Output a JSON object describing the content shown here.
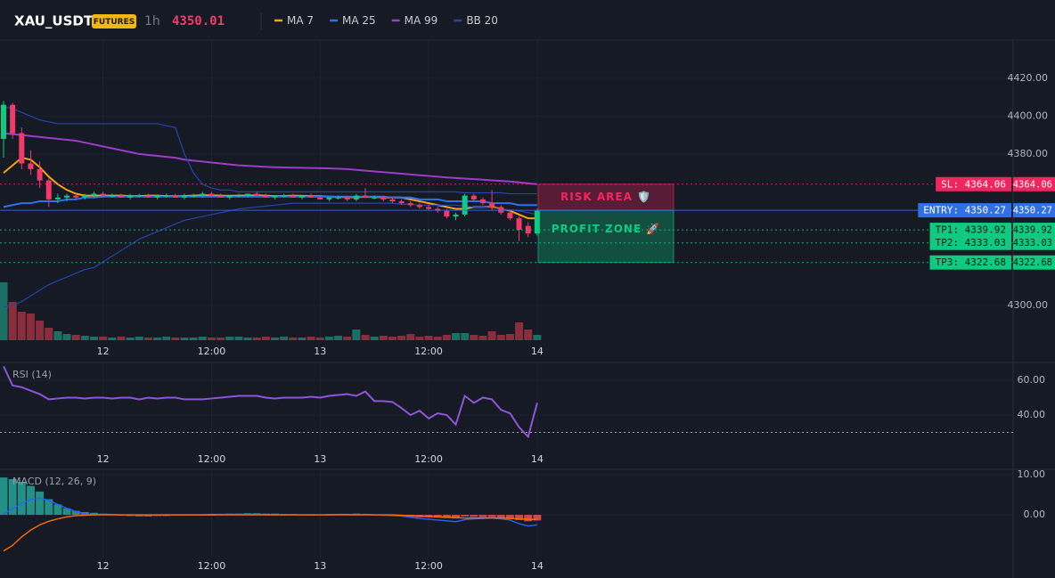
{
  "chart_data": {
    "type": "candlestick",
    "title": "XAU_USDT",
    "badge": "FUTURES",
    "interval": "1h",
    "price": 4350.01,
    "categories": [
      null,
      null,
      null,
      null,
      null,
      null,
      null,
      null,
      null,
      null,
      null,
      "12",
      null,
      null,
      null,
      null,
      null,
      null,
      null,
      null,
      null,
      null,
      null,
      "12:00",
      null,
      null,
      null,
      null,
      null,
      null,
      null,
      null,
      null,
      null,
      null,
      "13",
      null,
      null,
      null,
      null,
      null,
      null,
      null,
      null,
      null,
      null,
      null,
      "12:00",
      null,
      null,
      null,
      null,
      null,
      null,
      null,
      null,
      null,
      null,
      null,
      "14"
    ],
    "open": [
      4388,
      4406,
      4391,
      4375,
      4372,
      4366,
      4356,
      4357,
      4358,
      4357,
      4358,
      4359,
      4358,
      4358,
      4357,
      4358,
      4358,
      4357,
      4358,
      4358,
      4357,
      4358,
      4358,
      4359,
      4358,
      4357,
      4358,
      4358,
      4359,
      4358,
      4357,
      4358,
      4358,
      4357,
      4358,
      4357,
      4356,
      4357,
      4357,
      4356,
      4358,
      4357,
      4357,
      4356,
      4355,
      4354,
      4353,
      4352,
      4351,
      4350,
      4347,
      4348,
      4358,
      4356,
      4354,
      4352,
      4349,
      4346,
      4342,
      4338
    ],
    "high": [
      4408,
      4407,
      4394,
      4382,
      4376,
      4367,
      4359,
      4359,
      4359,
      4359,
      4360,
      4360,
      4359,
      4359,
      4359,
      4359,
      4359,
      4358,
      4359,
      4359,
      4359,
      4359,
      4360,
      4360,
      4359,
      4358,
      4359,
      4359,
      4360,
      4359,
      4358,
      4359,
      4359,
      4358,
      4359,
      4358,
      4357,
      4358,
      4358,
      4359,
      4362,
      4358,
      4358,
      4357,
      4356,
      4355,
      4354,
      4353,
      4352,
      4351,
      4349,
      4359,
      4359,
      4357,
      4361,
      4353,
      4350,
      4347,
      4344,
      4351
    ],
    "low": [
      4378,
      4388,
      4372,
      4369,
      4362,
      4352,
      4354,
      4355,
      4356,
      4356,
      4357,
      4357,
      4357,
      4357,
      4356,
      4357,
      4357,
      4356,
      4357,
      4357,
      4356,
      4357,
      4357,
      4357,
      4357,
      4356,
      4357,
      4357,
      4358,
      4357,
      4356,
      4357,
      4357,
      4356,
      4357,
      4356,
      4355,
      4356,
      4355,
      4355,
      4357,
      4356,
      4355,
      4354,
      4353,
      4352,
      4351,
      4350,
      4349,
      4346,
      4345,
      4347,
      4355,
      4353,
      4350,
      4348,
      4345,
      4334,
      4336,
      4337
    ],
    "close": [
      4406,
      4391,
      4375,
      4372,
      4366,
      4356,
      4357,
      4358,
      4357,
      4358,
      4359,
      4358,
      4358,
      4357,
      4358,
      4358,
      4357,
      4358,
      4358,
      4357,
      4358,
      4358,
      4359,
      4358,
      4357,
      4358,
      4358,
      4359,
      4358,
      4357,
      4358,
      4358,
      4357,
      4358,
      4357,
      4356,
      4357,
      4357,
      4356,
      4358,
      4357,
      4357,
      4356,
      4355,
      4354,
      4353,
      4352,
      4351,
      4350,
      4347,
      4348,
      4358,
      4356,
      4354,
      4352,
      4349,
      4346,
      4340,
      4338,
      4350.01
    ],
    "volume": [
      65,
      43,
      32,
      30,
      22,
      14,
      10,
      7,
      6,
      5,
      4,
      4,
      3,
      4,
      3,
      4,
      3,
      3,
      4,
      3,
      3,
      3,
      4,
      3,
      3,
      4,
      4,
      3,
      3,
      4,
      3,
      4,
      3,
      3,
      4,
      3,
      4,
      5,
      4,
      12,
      6,
      4,
      5,
      4,
      5,
      7,
      4,
      5,
      4,
      6,
      8,
      8,
      6,
      5,
      10,
      6,
      7,
      20,
      12,
      6
    ],
    "up_color": "#0ecb81",
    "down_color": "#f23a6a",
    "volume_up_color": "#1d6f66",
    "volume_down_color": "#8a2d3d",
    "ylim": [
      4281.6,
      4440.2
    ],
    "yticks": [
      {
        "value": 4300,
        "label": "4300.00"
      },
      {
        "value": 4380,
        "label": "4380.00"
      },
      {
        "value": 4400,
        "label": "4400.00"
      },
      {
        "value": 4420,
        "label": "4420.00"
      }
    ],
    "grid": true,
    "series": [
      {
        "name": "MA 7",
        "color": "#f7a21b",
        "values": [
          4370,
          4374,
          4378,
          4377,
          4373,
          4368,
          4364,
          4361,
          4359,
          4358,
          4358,
          4358,
          4358,
          4358,
          4357.8,
          4357.8,
          4358,
          4358,
          4357.8,
          4357.7,
          4357.8,
          4358,
          4358.2,
          4358.2,
          4358,
          4357.9,
          4358,
          4358.1,
          4358.2,
          4358,
          4357.8,
          4357.8,
          4358,
          4357.9,
          4357.8,
          4357.7,
          4357.5,
          4357.3,
          4357.2,
          4357.2,
          4357.4,
          4357.3,
          4357.1,
          4357,
          4357,
          4356,
          4355,
          4354,
          4353,
          4352,
          4351,
          4351,
          4352,
          4352,
          4352,
          4351,
          4350,
          4348,
          4346,
          4346
        ]
      },
      {
        "name": "MA 25",
        "color": "#2f6fe8",
        "values": [
          4352,
          4353,
          4354,
          4354,
          4355,
          4355,
          4355,
          4356,
          4356,
          4357,
          4357,
          4357.5,
          4357.5,
          4357.5,
          4357.5,
          4357.5,
          4357.5,
          4357.5,
          4357.5,
          4357.5,
          4357.5,
          4357.5,
          4357.5,
          4357.5,
          4357.5,
          4357.5,
          4357.5,
          4357.5,
          4357.5,
          4357.5,
          4357.5,
          4357.5,
          4357.5,
          4357.5,
          4357.5,
          4357.5,
          4357.5,
          4357.5,
          4357.5,
          4357.5,
          4357.5,
          4357.5,
          4357.5,
          4357,
          4357,
          4357,
          4356,
          4356,
          4356,
          4355,
          4355,
          4355,
          4355,
          4355,
          4354,
          4354,
          4354,
          4353,
          4353,
          4353
        ]
      },
      {
        "name": "MA 99",
        "color": "#9c3cc9",
        "values": [
          4391,
          4390.5,
          4390,
          4389.5,
          4389,
          4388.5,
          4388,
          4387.5,
          4387,
          4386,
          4385,
          4384,
          4383,
          4382,
          4381,
          4380,
          4379.5,
          4379,
          4378.5,
          4378,
          4377,
          4376.5,
          4376,
          4375.5,
          4375,
          4374.5,
          4374,
          4373.8,
          4373.5,
          4373.2,
          4373,
          4372.9,
          4372.8,
          4372.7,
          4372.6,
          4372.5,
          4372.4,
          4372.2,
          4372,
          4371.6,
          4371.2,
          4370.8,
          4370.4,
          4370,
          4369.6,
          4369.2,
          4368.8,
          4368.4,
          4368,
          4367.6,
          4367.3,
          4367,
          4366.7,
          4366.4,
          4366.1,
          4365.8,
          4365.5,
          4365,
          4364.5,
          4364
        ]
      },
      {
        "name": "BB 20",
        "color": "#2545a8",
        "upper": [
          4405,
          4404,
          4402,
          4400,
          4398,
          4397,
          4396,
          4396,
          4396,
          4396,
          4396,
          4396,
          4396,
          4396,
          4396,
          4396,
          4396,
          4396,
          4395,
          4394,
          4380,
          4370,
          4364,
          4362,
          4361,
          4361,
          4360,
          4360,
          4360,
          4360,
          4360,
          4360,
          4360,
          4360,
          4360,
          4360,
          4360,
          4360,
          4360,
          4360,
          4360,
          4360,
          4360,
          4360,
          4360,
          4360,
          4360,
          4360,
          4360,
          4360,
          4360,
          4359.5,
          4359.5,
          4359.5,
          4359.5,
          4359.5,
          4359,
          4359,
          4359,
          4359
        ],
        "lower": [
          4299,
          4300,
          4302,
          4305,
          4308,
          4311,
          4313,
          4315,
          4317,
          4319,
          4320,
          4323,
          4326,
          4329,
          4332,
          4335,
          4337,
          4339,
          4341,
          4343,
          4345,
          4346,
          4347,
          4348,
          4349,
          4350,
          4351,
          4351.5,
          4352,
          4352.5,
          4353,
          4353.5,
          4354,
          4354,
          4354,
          4354,
          4354,
          4354,
          4354,
          4354,
          4354,
          4354,
          4354,
          4354,
          4353.5,
          4353.5,
          4353,
          4353,
          4353,
          4353,
          4353,
          4352.5,
          4352,
          4352,
          4351.5,
          4351,
          4350.5,
          4350,
          4349,
          4348
        ]
      }
    ],
    "levels": [
      {
        "value": 4364.06,
        "label": "SL: 4364.06",
        "color": "#f0265f",
        "text_color": "#ffffff",
        "dashed": true
      },
      {
        "value": 4350.27,
        "label": "ENTRY: 4350.27",
        "color": "#2f6fe8",
        "text_color": "#ffffff",
        "dashed": false
      },
      {
        "value": 4339.92,
        "label": "TP1: 4339.92",
        "color": "#0ecb81",
        "text_color": "#0b1a12",
        "dashed": true
      },
      {
        "value": 4333.03,
        "label": "TP2: 4333.03",
        "color": "#0ecb81",
        "text_color": "#0b1a12",
        "dashed": true
      },
      {
        "value": 4322.68,
        "label": "TP3: 4322.68",
        "color": "#0ecb81",
        "text_color": "#0b1a12",
        "dashed": true
      }
    ],
    "zones": [
      {
        "text": "RISK AREA 🛡️",
        "top": 4364.06,
        "bottom": 4350.27,
        "color": "#f0265f"
      },
      {
        "text": "PROFIT ZONE 🚀",
        "top": 4350.27,
        "bottom": 4322.68,
        "color": "#0ecb81"
      }
    ],
    "panels": [
      {
        "type": "line",
        "name": "RSI (14)",
        "color": "#8e55d6",
        "ylim": [
          19,
          69.7
        ],
        "yticks": [
          {
            "value": 40,
            "label": "40.00"
          },
          {
            "value": 60,
            "label": "60.00"
          }
        ],
        "hlines": [
          30
        ],
        "values": [
          68,
          57,
          56,
          54,
          52,
          49,
          49.5,
          50,
          50,
          49.5,
          50,
          50,
          49.5,
          50,
          50,
          49,
          50,
          49.5,
          50,
          50,
          49,
          49,
          49,
          49.5,
          50,
          50.5,
          51,
          51,
          51,
          50,
          49.5,
          50,
          50,
          50,
          50.5,
          50,
          51,
          51.5,
          52,
          51,
          53.5,
          48,
          48,
          47.5,
          44,
          40,
          42.5,
          38,
          41,
          40,
          34.5,
          51,
          47,
          50,
          49,
          43,
          41,
          33,
          27.5,
          47
        ]
      },
      {
        "type": "macd",
        "name": "MACD (12, 26, 9)",
        "ylim": [
          -10.4,
          11.1
        ],
        "yticks": [
          {
            "value": 0,
            "label": "0.00"
          },
          {
            "value": 10,
            "label": "10.00"
          }
        ],
        "histogram": {
          "up_color": "#26a69a",
          "down_color": "#ef5350",
          "values": [
            9.3,
            8.9,
            8.2,
            7.2,
            5.8,
            3.9,
            2.6,
            1.6,
            1.0,
            0.7,
            0.5,
            0.3,
            0.2,
            -0.2,
            -0.3,
            -0.4,
            -0.4,
            -0.3,
            -0.3,
            -0.2,
            -0.2,
            -0.1,
            -0.2,
            -0.1,
            0.2,
            0.3,
            0.3,
            0.4,
            0.4,
            0.3,
            0.3,
            0.2,
            0.2,
            0.1,
            -0.1,
            0.1,
            0.2,
            0.2,
            0.1,
            0.3,
            0.2,
            -0.1,
            -0.2,
            -0.3,
            -0.4,
            -0.5,
            -0.6,
            -0.6,
            -0.7,
            -0.8,
            -0.9,
            -0.4,
            -0.5,
            -0.6,
            -0.6,
            -0.8,
            -1.0,
            -1.3,
            -1.6,
            -1.4
          ]
        },
        "series": [
          {
            "color": "#2962ff",
            "values": [
              0.2,
              1.5,
              2.8,
              3.8,
              4.2,
              3.6,
              2.6,
              1.6,
              0.8,
              0.3,
              0,
              0.1,
              0.1,
              0,
              0,
              -0.1,
              -0.1,
              0,
              0,
              0,
              0,
              0,
              0,
              0.1,
              0.1,
              0.1,
              0.1,
              0.1,
              0.1,
              0,
              0,
              0,
              0,
              0,
              0,
              0,
              0,
              0.1,
              0.1,
              0,
              0.1,
              0,
              -0.1,
              -0.2,
              -0.3,
              -0.6,
              -0.9,
              -1.1,
              -1.3,
              -1.5,
              -1.7,
              -1.2,
              -1.0,
              -0.9,
              -0.8,
              -1.0,
              -1.3,
              -2.2,
              -2.8,
              -2.5
            ]
          },
          {
            "color": "#ff6d00",
            "values": [
              -9.0,
              -7.6,
              -5.5,
              -3.8,
              -2.5,
              -1.6,
              -1.0,
              -0.5,
              -0.2,
              -0.1,
              0,
              0,
              0,
              0,
              0,
              0,
              0,
              0,
              0,
              0,
              0,
              0,
              0,
              0,
              0,
              0,
              0,
              0,
              0,
              0,
              0,
              0,
              0,
              0,
              0,
              0,
              0,
              0,
              0,
              0,
              0,
              0,
              0,
              0,
              -0.1,
              -0.2,
              -0.3,
              -0.4,
              -0.5,
              -0.6,
              -0.7,
              -0.8,
              -0.8,
              -0.8,
              -0.8,
              -0.8,
              -0.9,
              -1.0,
              -1.1,
              -1.2
            ]
          }
        ]
      }
    ]
  }
}
